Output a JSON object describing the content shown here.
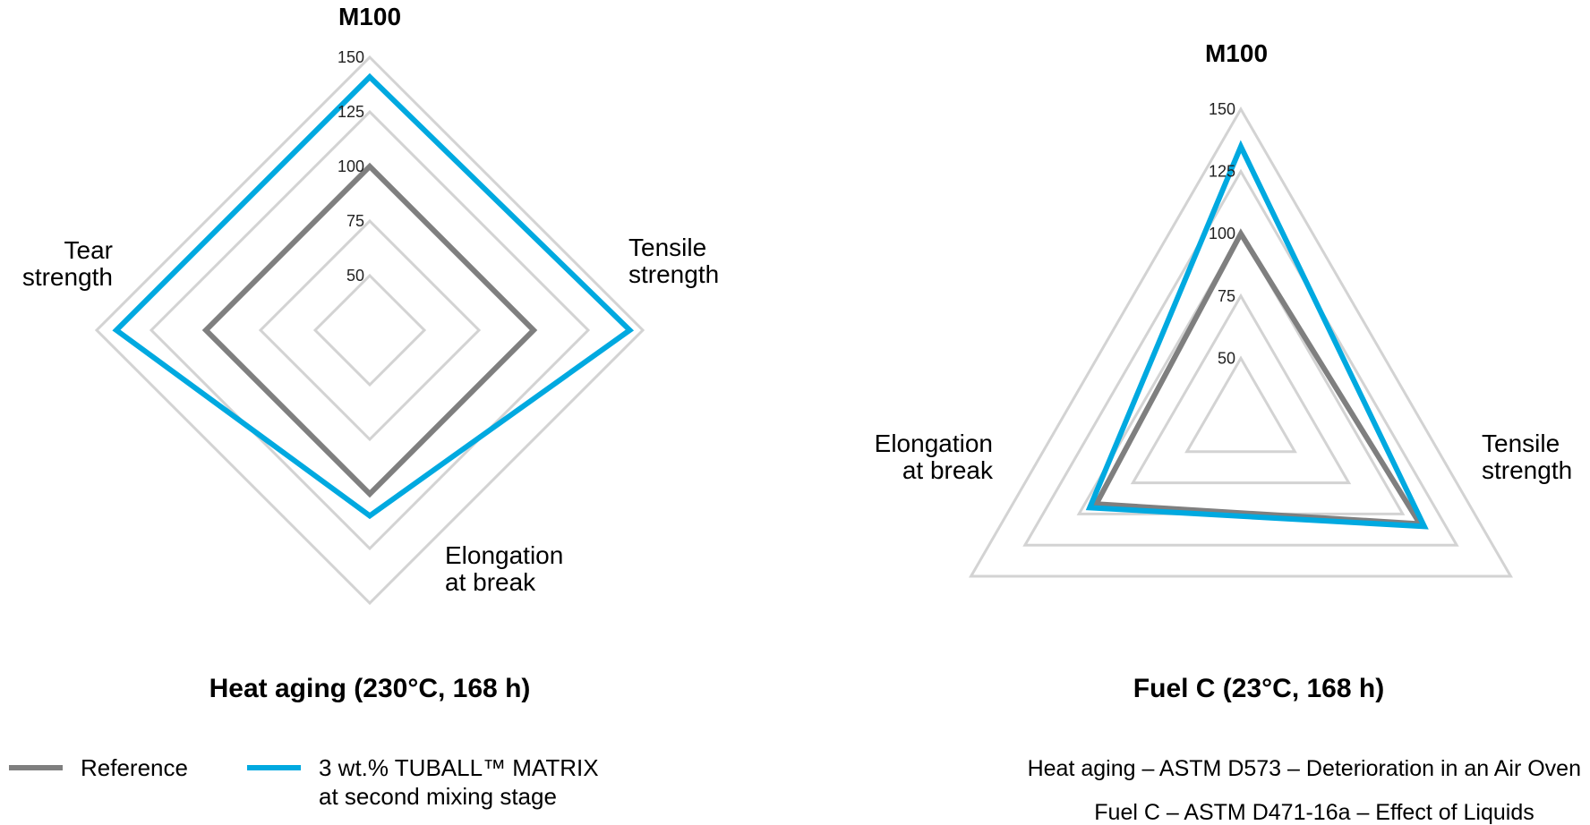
{
  "chart_data": [
    {
      "type": "radar",
      "title": "Heat aging (230°C, 168 h)",
      "axes": [
        {
          "label_lines": [
            "M100"
          ]
        },
        {
          "label_lines": [
            "Tensile",
            "strength"
          ]
        },
        {
          "label_lines": [
            "Elongation",
            "at break"
          ]
        },
        {
          "label_lines": [
            "Tear",
            "strength"
          ]
        }
      ],
      "ticks": [
        "50",
        "75",
        "100",
        "125",
        "150"
      ],
      "rlim": [
        25,
        150
      ],
      "series": [
        {
          "name": "Reference",
          "values": [
            100,
            100,
            100,
            100
          ]
        },
        {
          "name": "3 wt.% TUBALL™ MATRIX at second mixing stage",
          "values": [
            141,
            144,
            110,
            141
          ]
        }
      ]
    },
    {
      "type": "radar",
      "title": "Fuel C (23°C, 168 h)",
      "axes": [
        {
          "label_lines": [
            "M100"
          ]
        },
        {
          "label_lines": [
            "Tensile",
            "strength"
          ]
        },
        {
          "label_lines": [
            "Elongation",
            "at break"
          ]
        }
      ],
      "ticks": [
        "50",
        "75",
        "100",
        "125",
        "150"
      ],
      "rlim": [
        25,
        150
      ],
      "series": [
        {
          "name": "Reference",
          "values": [
            100,
            108,
            92
          ]
        },
        {
          "name": "3 wt.% TUBALL™ MATRIX at second mixing stage",
          "values": [
            135,
            110,
            95
          ]
        }
      ]
    }
  ],
  "legend": {
    "items": [
      {
        "label_lines": [
          "Reference"
        ],
        "color": "#7f7f7f"
      },
      {
        "label_lines": [
          "3 wt.% TUBALL™ MATRIX",
          "at second mixing stage"
        ],
        "color": "#00a9e0"
      }
    ]
  },
  "notes": [
    "Heat aging – ASTM D573 – Deterioration in an Air Oven",
    "Fuel C – ASTM D471-16a – Effect of Liquids"
  ],
  "colors": {
    "reference": "#7f7f7f",
    "tuball": "#00a9e0",
    "grid": "#d3d3d3"
  }
}
